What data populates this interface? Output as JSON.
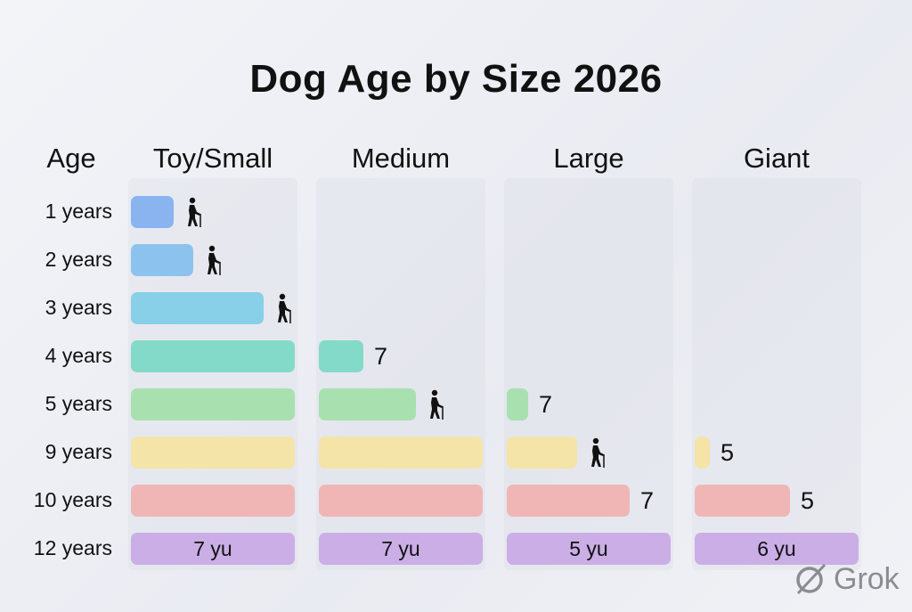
{
  "chart_data": {
    "type": "bar",
    "title": "Dog Age by Size 2026",
    "row_header": "Age",
    "categories": [
      "1 years",
      "2 years",
      "3 years",
      "4 years",
      "5 years",
      "9 years",
      "10 years",
      "12 years"
    ],
    "columns": [
      "Toy/Small",
      "Medium",
      "Large",
      "Giant"
    ],
    "row_colors": [
      "#8ab4f0",
      "#8cc3ee",
      "#88cfe8",
      "#84dac8",
      "#a8e0b0",
      "#f4e4a8",
      "#f0b6b6",
      "#cbaee6"
    ],
    "series": [
      {
        "name": "Toy/Small",
        "fill_fraction": [
          0.26,
          0.38,
          0.81,
          1,
          1,
          1,
          1,
          1
        ],
        "labels": [
          "walker",
          "walker",
          "walker",
          "",
          "",
          "",
          "",
          "7 yu"
        ]
      },
      {
        "name": "Medium",
        "fill_fraction": [
          0,
          0,
          0,
          0.27,
          0.59,
          1,
          1,
          1
        ],
        "labels": [
          "",
          "",
          "",
          "7",
          "walker",
          "",
          "",
          "7 yu"
        ]
      },
      {
        "name": "Large",
        "fill_fraction": [
          0,
          0,
          0,
          0,
          0.13,
          0.43,
          0.75,
          1
        ],
        "labels": [
          "",
          "",
          "",
          "",
          "7",
          "walker",
          "7",
          "5 yu"
        ]
      },
      {
        "name": "Giant",
        "fill_fraction": [
          0,
          0,
          0,
          0,
          0,
          0.09,
          0.58,
          1
        ],
        "labels": [
          "",
          "",
          "",
          "",
          "",
          "5",
          "5",
          "6 yu"
        ]
      }
    ]
  },
  "watermark": "Grok",
  "icons": {
    "walker": "elderly-person-with-cane-icon",
    "logo": "grok-logo-icon"
  }
}
